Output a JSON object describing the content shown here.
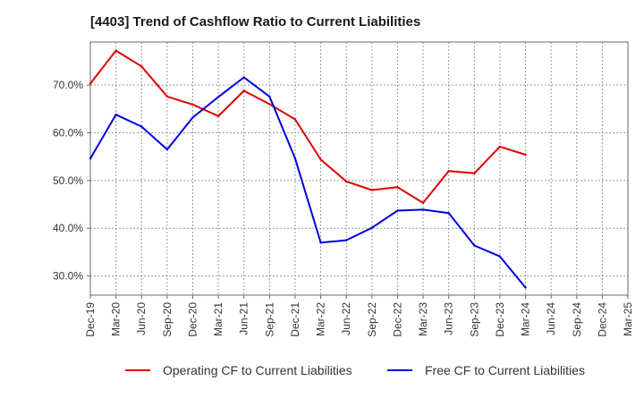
{
  "chart_data": {
    "type": "line",
    "title": "[4403]  Trend of Cashflow Ratio to Current Liabilities",
    "xlabel": "",
    "ylabel": "",
    "ylim": [
      26,
      79
    ],
    "yticks": [
      30,
      40,
      50,
      60,
      70
    ],
    "y_tick_format": "{v}.0%",
    "grid": true,
    "legend_position": "bottom",
    "categories": [
      "Dec-19",
      "Mar-20",
      "Jun-20",
      "Sep-20",
      "Dec-20",
      "Mar-21",
      "Jun-21",
      "Sep-21",
      "Dec-21",
      "Mar-22",
      "Jun-22",
      "Sep-22",
      "Dec-22",
      "Mar-23",
      "Jun-23",
      "Sep-23",
      "Dec-23",
      "Mar-24",
      "Jun-24",
      "Sep-24",
      "Dec-24",
      "Mar-25"
    ],
    "series": [
      {
        "name": "Operating CF to Current Liabilities",
        "color": "#e00000",
        "values": [
          70.3,
          77.2,
          73.9,
          67.6,
          65.9,
          63.5,
          68.8,
          66.0,
          62.8,
          54.4,
          49.8,
          48.0,
          48.6,
          45.3,
          52.0,
          51.5,
          57.1,
          55.4,
          null,
          null,
          null,
          null
        ]
      },
      {
        "name": "Free CF to Current Liabilities",
        "color": "#0000e0",
        "values": [
          54.6,
          63.8,
          61.3,
          56.5,
          63.2,
          67.5,
          71.6,
          67.6,
          54.6,
          37.0,
          37.5,
          40.1,
          43.7,
          43.9,
          43.2,
          36.4,
          34.1,
          27.6,
          null,
          null,
          null,
          null
        ]
      }
    ]
  }
}
